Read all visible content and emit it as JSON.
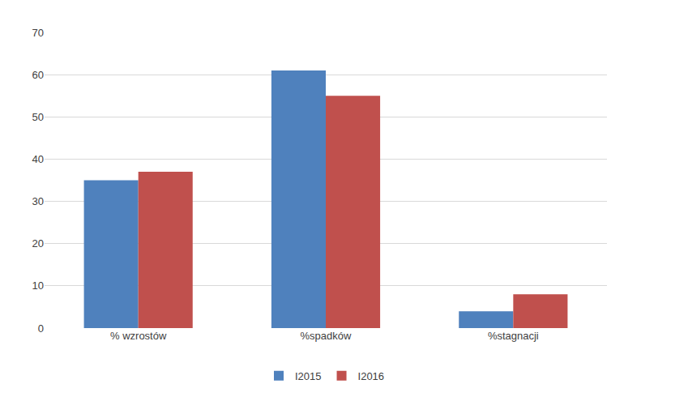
{
  "chart_data": {
    "type": "bar",
    "categories": [
      "% wzrostów",
      "%spadków",
      "%stagnacji"
    ],
    "series": [
      {
        "name": "I2015",
        "color": "#4f81bd",
        "values": [
          35,
          61,
          4
        ]
      },
      {
        "name": "I2016",
        "color": "#c0504d",
        "values": [
          37,
          55,
          8
        ]
      }
    ],
    "ylim": [
      0,
      70
    ],
    "yticks": [
      0,
      10,
      20,
      30,
      40,
      50,
      60,
      70
    ],
    "grid": true,
    "legend": "bottom"
  }
}
